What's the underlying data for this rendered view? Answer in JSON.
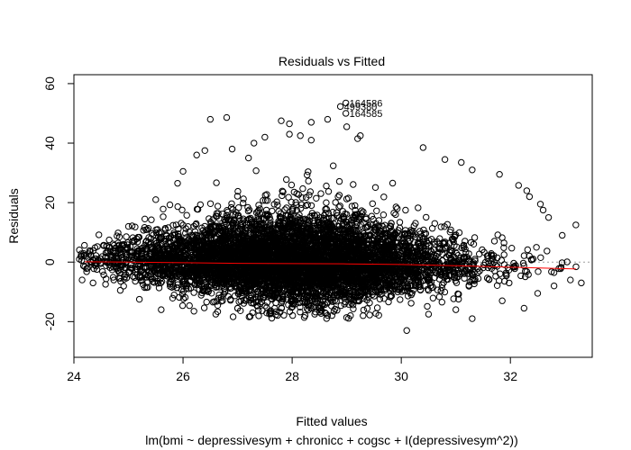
{
  "chart_data": {
    "type": "scatter",
    "title": "Residuals vs Fitted",
    "xlabel": "Fitted values",
    "ylabel": "Residuals",
    "subtitle": "lm(bmi ~ depressivesym + chronicc + cogsc + I(depressivesym^2))",
    "xlim": [
      24.0,
      33.5
    ],
    "ylim": [
      -32,
      63
    ],
    "xticks": [
      24,
      26,
      28,
      30,
      32
    ],
    "yticks": [
      -20,
      0,
      20,
      40,
      60
    ],
    "reference_line": {
      "y": 0,
      "style": "dotted",
      "color": "#9e9e9e"
    },
    "smoother": {
      "color": "#ff0000",
      "x": [
        24.2,
        25,
        26,
        27,
        28,
        29,
        30,
        31,
        32,
        33.2
      ],
      "y": [
        0.1,
        0.0,
        -0.2,
        -0.4,
        -0.5,
        -0.6,
        -0.8,
        -1.2,
        -1.7,
        -2.3
      ]
    },
    "labeled_points": [
      {
        "label": "164586",
        "x": 29.05,
        "y": 53.5
      },
      {
        "label": "499380",
        "x": 28.95,
        "y": 52.3
      },
      {
        "label": "164585",
        "x": 29.05,
        "y": 50.0
      }
    ],
    "outliers": [
      {
        "x": 26.5,
        "y": 48.0
      },
      {
        "x": 26.8,
        "y": 48.6
      },
      {
        "x": 29.0,
        "y": 45.5
      },
      {
        "x": 27.8,
        "y": 47.5
      },
      {
        "x": 27.95,
        "y": 46.5
      },
      {
        "x": 28.35,
        "y": 47.0
      },
      {
        "x": 28.65,
        "y": 48.0
      },
      {
        "x": 29.25,
        "y": 42.5
      },
      {
        "x": 29.2,
        "y": 41.5
      },
      {
        "x": 27.5,
        "y": 42.0
      },
      {
        "x": 27.95,
        "y": 43.0
      },
      {
        "x": 28.15,
        "y": 42.5
      },
      {
        "x": 27.3,
        "y": 40.0
      },
      {
        "x": 28.35,
        "y": 41.0
      },
      {
        "x": 26.9,
        "y": 38.0
      },
      {
        "x": 26.4,
        "y": 37.5
      },
      {
        "x": 30.4,
        "y": 38.5
      },
      {
        "x": 26.25,
        "y": 36.0
      },
      {
        "x": 27.2,
        "y": 35.0
      },
      {
        "x": 30.8,
        "y": 34.5
      },
      {
        "x": 31.1,
        "y": 33.5
      },
      {
        "x": 31.3,
        "y": 31.0
      },
      {
        "x": 31.8,
        "y": 29.5
      },
      {
        "x": 32.15,
        "y": 25.8
      },
      {
        "x": 32.3,
        "y": 24.0
      },
      {
        "x": 32.55,
        "y": 19.5
      },
      {
        "x": 32.35,
        "y": 22.0
      },
      {
        "x": 32.6,
        "y": 17.5
      },
      {
        "x": 32.7,
        "y": 15.0
      },
      {
        "x": 33.2,
        "y": 12.5
      },
      {
        "x": 32.95,
        "y": 9.0
      },
      {
        "x": 33.3,
        "y": -7.0
      },
      {
        "x": 33.1,
        "y": -6.0
      },
      {
        "x": 32.8,
        "y": -8.0
      },
      {
        "x": 32.25,
        "y": -15.5
      },
      {
        "x": 30.1,
        "y": -23.0
      },
      {
        "x": 31.3,
        "y": -19.0
      },
      {
        "x": 29.3,
        "y": -18.0
      },
      {
        "x": 28.6,
        "y": -17.0
      },
      {
        "x": 25.6,
        "y": -16.0
      },
      {
        "x": 24.15,
        "y": -6.0
      },
      {
        "x": 24.35,
        "y": -7.0
      },
      {
        "x": 24.1,
        "y": 1.0
      },
      {
        "x": 24.3,
        "y": 3.5
      },
      {
        "x": 24.55,
        "y": 5.5
      },
      {
        "x": 25.0,
        "y": 12.0
      },
      {
        "x": 25.3,
        "y": 14.5
      },
      {
        "x": 25.5,
        "y": 21.0
      },
      {
        "x": 25.9,
        "y": 26.5
      },
      {
        "x": 26.0,
        "y": 30.5
      },
      {
        "x": 24.85,
        "y": -9.5
      },
      {
        "x": 25.2,
        "y": -12.5
      },
      {
        "x": 26.2,
        "y": -16.5
      },
      {
        "x": 27.0,
        "y": -15.5
      },
      {
        "x": 31.85,
        "y": -13.0
      },
      {
        "x": 32.5,
        "y": -10.5
      },
      {
        "x": 31.0,
        "y": -16.0
      },
      {
        "x": 30.5,
        "y": -17.5
      },
      {
        "x": 27.6,
        "y": -17.0
      },
      {
        "x": 26.6,
        "y": -17.5
      }
    ]
  }
}
